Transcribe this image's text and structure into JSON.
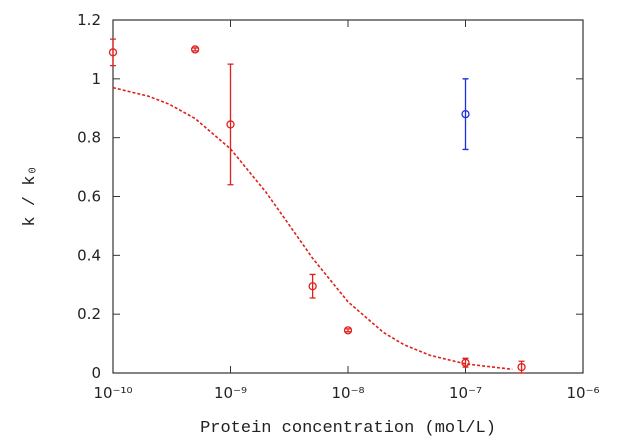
{
  "chart_data": {
    "type": "scatter",
    "x_label": "Protein concentration (mol/L)",
    "y_label": "k / k₀",
    "xscale": "log",
    "xlim": [
      1e-10,
      1e-06
    ],
    "xticks": [
      {
        "value": 1e-10,
        "label": "10⁻¹⁰"
      },
      {
        "value": 1e-09,
        "label": "10⁻⁹"
      },
      {
        "value": 1e-08,
        "label": "10⁻⁸"
      },
      {
        "value": 1e-07,
        "label": "10⁻⁷"
      },
      {
        "value": 1e-06,
        "label": "10⁻⁶"
      }
    ],
    "ylim": [
      0,
      1.2
    ],
    "yticks": [
      0,
      0.2,
      0.4,
      0.6,
      0.8,
      1,
      1.2
    ],
    "series": [
      {
        "type": "scatter",
        "color": "#e0201c",
        "x": [
          1e-10,
          5e-10,
          1e-09,
          5e-09,
          1e-08,
          1e-07,
          3e-07
        ],
        "values": [
          1.09,
          1.1,
          0.845,
          0.295,
          0.145,
          0.035,
          0.02
        ],
        "errors": [
          0.045,
          0.005,
          0.205,
          0.04,
          0.005,
          0.015,
          0.02
        ]
      },
      {
        "type": "scatter",
        "color": "#1c2ee0",
        "x": [
          1e-07
        ],
        "values": [
          0.88
        ],
        "errors": [
          0.12
        ]
      },
      {
        "type": "line",
        "dashed": true,
        "color": "#e0201c",
        "x": [
          1e-10,
          2e-10,
          3e-10,
          5e-10,
          1e-09,
          2e-09,
          3e-09,
          5e-09,
          1e-08,
          2e-08,
          3e-08,
          5e-08,
          1e-07,
          2.5e-07
        ],
        "values": [
          0.97,
          0.941,
          0.914,
          0.865,
          0.762,
          0.615,
          0.516,
          0.39,
          0.242,
          0.138,
          0.096,
          0.06,
          0.031,
          0.0126
        ]
      }
    ]
  }
}
